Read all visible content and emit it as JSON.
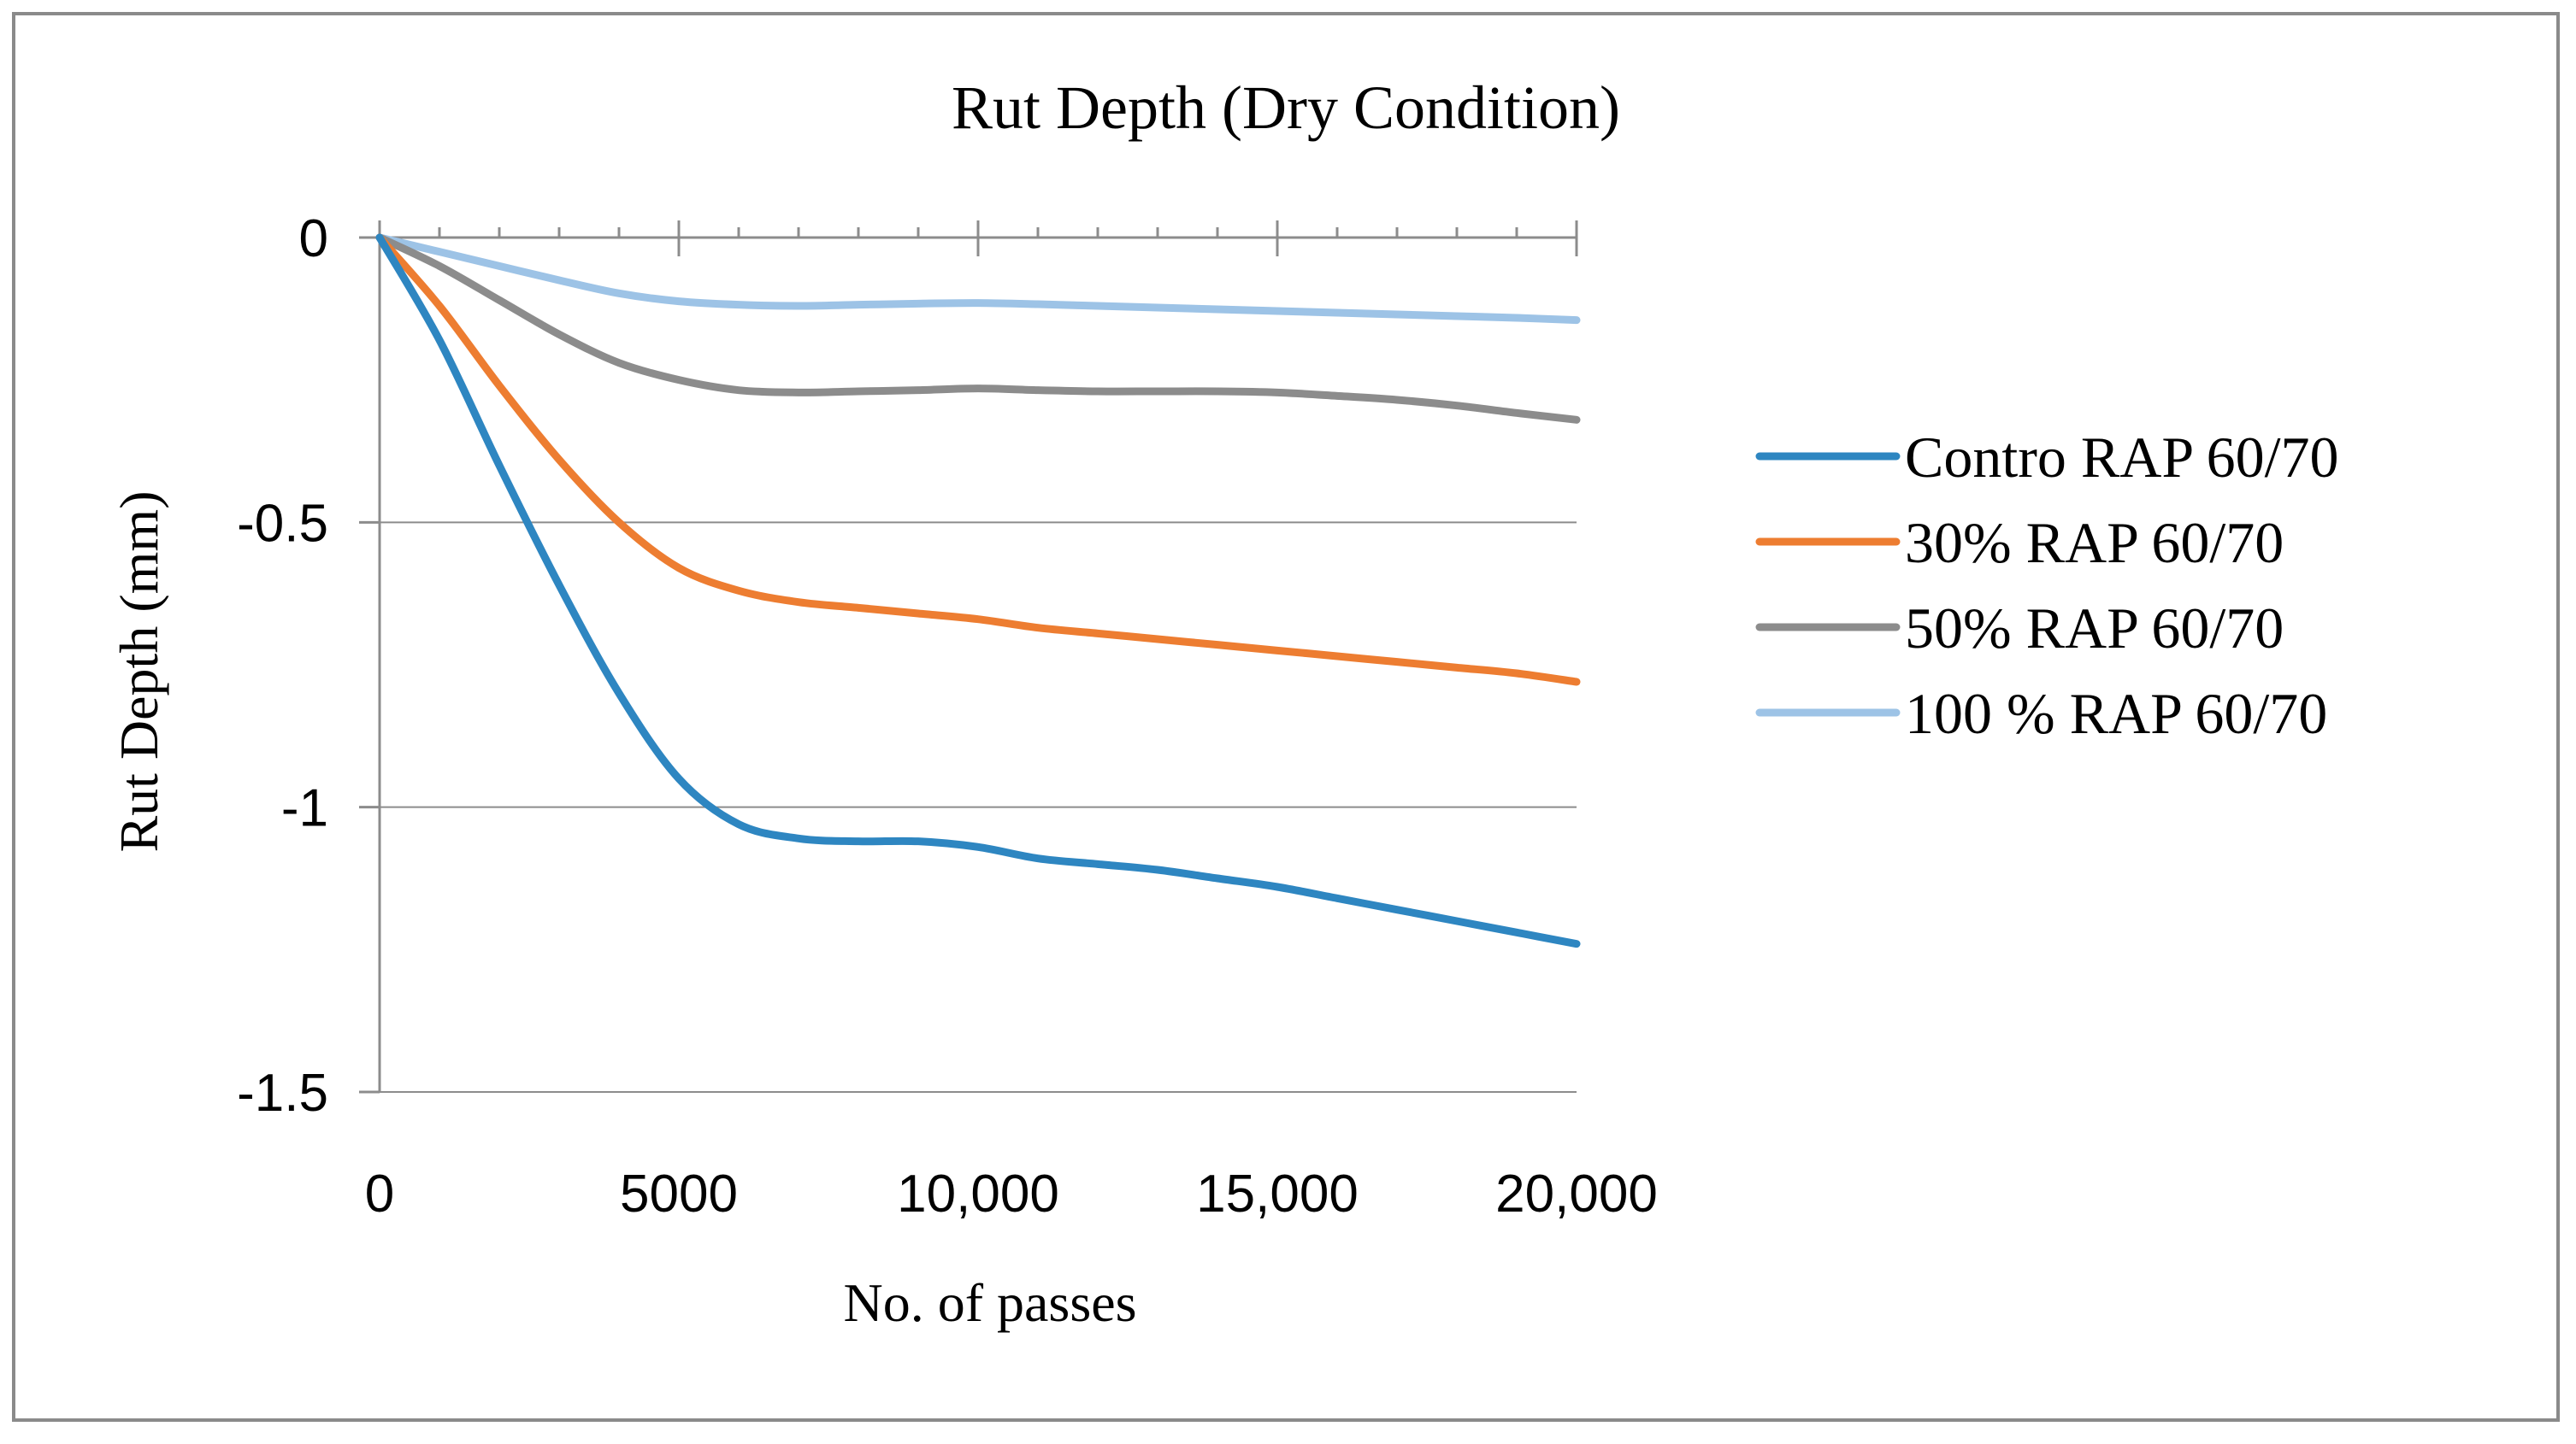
{
  "chart_data": {
    "type": "line",
    "title": "Rut Depth (Dry Condition)",
    "xlabel": "No. of passes",
    "ylabel": "Rut Depth (mm)",
    "xlim": [
      0,
      20000
    ],
    "ylim": [
      -1.5,
      0
    ],
    "x_ticks": [
      0,
      5000,
      10000,
      15000,
      20000
    ],
    "x_tick_labels": [
      "0",
      "5000",
      "10,000",
      "15,000",
      "20,000"
    ],
    "y_ticks": [
      0,
      -0.5,
      -1,
      -1.5
    ],
    "y_tick_labels": [
      "0",
      "-0.5",
      "-1",
      "-1.5"
    ],
    "x_minor_step": 1000,
    "grid": "horizontal",
    "legend_position": "right",
    "series": [
      {
        "name": "Contro RAP 60/70",
        "color": "#2e86c1",
        "points": [
          [
            0,
            0
          ],
          [
            1000,
            -0.18
          ],
          [
            2000,
            -0.4
          ],
          [
            3000,
            -0.61
          ],
          [
            4000,
            -0.8
          ],
          [
            5000,
            -0.95
          ],
          [
            6000,
            -1.03
          ],
          [
            7000,
            -1.055
          ],
          [
            8000,
            -1.06
          ],
          [
            9000,
            -1.06
          ],
          [
            10000,
            -1.07
          ],
          [
            11000,
            -1.09
          ],
          [
            12000,
            -1.1
          ],
          [
            13000,
            -1.11
          ],
          [
            14000,
            -1.125
          ],
          [
            15000,
            -1.14
          ],
          [
            16000,
            -1.16
          ],
          [
            17000,
            -1.18
          ],
          [
            18000,
            -1.2
          ],
          [
            19000,
            -1.22
          ],
          [
            20000,
            -1.24
          ]
        ]
      },
      {
        "name": "30% RAP 60/70",
        "color": "#ed7d31",
        "points": [
          [
            0,
            0
          ],
          [
            1000,
            -0.12
          ],
          [
            2000,
            -0.26
          ],
          [
            3000,
            -0.39
          ],
          [
            4000,
            -0.5
          ],
          [
            5000,
            -0.58
          ],
          [
            6000,
            -0.62
          ],
          [
            7000,
            -0.64
          ],
          [
            8000,
            -0.65
          ],
          [
            9000,
            -0.66
          ],
          [
            10000,
            -0.67
          ],
          [
            11000,
            -0.685
          ],
          [
            12000,
            -0.695
          ],
          [
            13000,
            -0.705
          ],
          [
            14000,
            -0.715
          ],
          [
            15000,
            -0.725
          ],
          [
            16000,
            -0.735
          ],
          [
            17000,
            -0.745
          ],
          [
            18000,
            -0.755
          ],
          [
            19000,
            -0.765
          ],
          [
            20000,
            -0.78
          ]
        ]
      },
      {
        "name": "50% RAP 60/70",
        "color": "#8c8c8c",
        "points": [
          [
            0,
            0
          ],
          [
            1000,
            -0.05
          ],
          [
            2000,
            -0.11
          ],
          [
            3000,
            -0.17
          ],
          [
            4000,
            -0.22
          ],
          [
            5000,
            -0.25
          ],
          [
            6000,
            -0.268
          ],
          [
            7000,
            -0.272
          ],
          [
            8000,
            -0.27
          ],
          [
            9000,
            -0.268
          ],
          [
            10000,
            -0.265
          ],
          [
            11000,
            -0.268
          ],
          [
            12000,
            -0.27
          ],
          [
            13000,
            -0.27
          ],
          [
            14000,
            -0.27
          ],
          [
            15000,
            -0.272
          ],
          [
            16000,
            -0.278
          ],
          [
            17000,
            -0.285
          ],
          [
            18000,
            -0.295
          ],
          [
            19000,
            -0.308
          ],
          [
            20000,
            -0.32
          ]
        ]
      },
      {
        "name": "100 % RAP 60/70",
        "color": "#9dc3e6",
        "points": [
          [
            0,
            0
          ],
          [
            1000,
            -0.025
          ],
          [
            2000,
            -0.05
          ],
          [
            3000,
            -0.075
          ],
          [
            4000,
            -0.098
          ],
          [
            5000,
            -0.112
          ],
          [
            6000,
            -0.118
          ],
          [
            7000,
            -0.12
          ],
          [
            8000,
            -0.118
          ],
          [
            9000,
            -0.116
          ],
          [
            10000,
            -0.115
          ],
          [
            11000,
            -0.117
          ],
          [
            12000,
            -0.12
          ],
          [
            13000,
            -0.123
          ],
          [
            14000,
            -0.126
          ],
          [
            15000,
            -0.129
          ],
          [
            16000,
            -0.132
          ],
          [
            17000,
            -0.135
          ],
          [
            18000,
            -0.138
          ],
          [
            19000,
            -0.141
          ],
          [
            20000,
            -0.145
          ]
        ]
      }
    ]
  }
}
